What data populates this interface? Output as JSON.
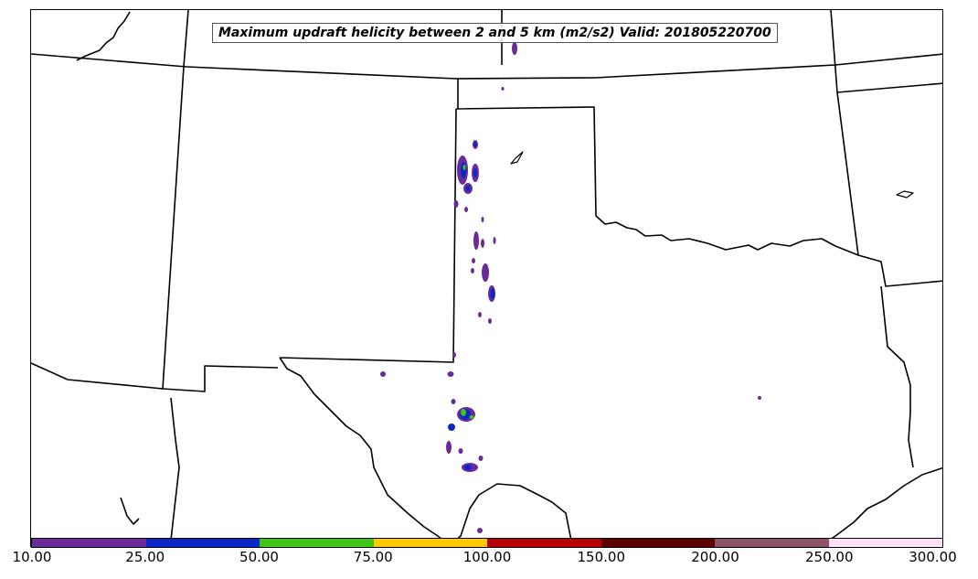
{
  "title": "Maximum updraft helicity between 2 and 5 km (m2/s2) Valid: 201805220700",
  "colorbar": {
    "ticks": [
      "10.00",
      "25.00",
      "50.00",
      "75.00",
      "100.00",
      "150.00",
      "200.00",
      "250.00",
      "300.00"
    ],
    "colors": [
      "#6a2a9a",
      "#0a28c8",
      "#3fc418",
      "#ffc800",
      "#b80000",
      "#5c0000",
      "#8c5466",
      "#ffe0f8"
    ]
  },
  "map": {
    "region": "Southern Plains: Texas, Oklahoma, New Mexico, Kansas, Colorado",
    "boundary_color": "#000000",
    "background": "#ffffff"
  },
  "chart_data": {
    "type": "heatmap",
    "title": "Maximum updraft helicity between 2 and 5 km (m2/s2) Valid: 201805220700",
    "variable": "Maximum updraft helicity between 2 and 5 km",
    "units": "m2/s2",
    "valid_time": "201805220700",
    "levels": [
      10,
      25,
      50,
      75,
      100,
      150,
      200,
      250,
      300
    ],
    "colors": [
      "#6a2a9a",
      "#0a28c8",
      "#3fc418",
      "#ffc800",
      "#b80000",
      "#5c0000",
      "#8c5466",
      "#ffe0f8"
    ],
    "observed_max_bin": "50.00-75.00"
  }
}
